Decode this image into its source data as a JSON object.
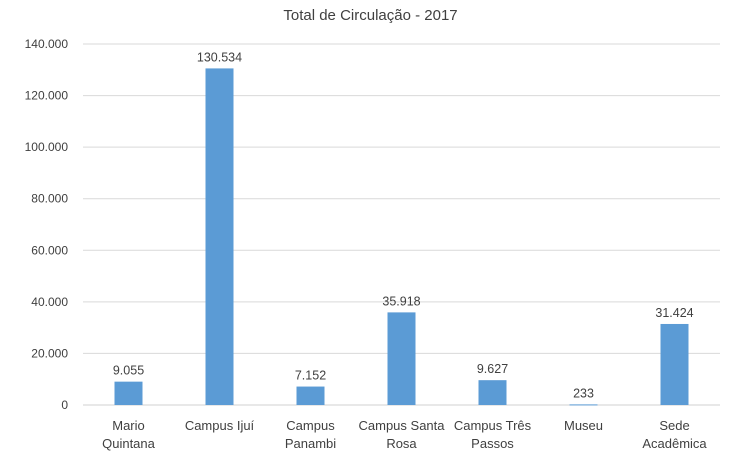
{
  "chart_data": {
    "type": "bar",
    "title": "Total de Circulação - 2017",
    "categories": [
      "Mario Quintana",
      "Campus Ijuí",
      "Campus Panambi",
      "Campus Santa Rosa",
      "Campus Três Passos",
      "Museu",
      "Sede Acadêmica"
    ],
    "values": [
      9055,
      130534,
      7152,
      35918,
      9627,
      233,
      31424
    ],
    "data_labels": [
      "9.055",
      "130.534",
      "7.152",
      "35.918",
      "9.627",
      "233",
      "31.424"
    ],
    "ylim": [
      0,
      140000
    ],
    "yticks": [
      0,
      20000,
      40000,
      60000,
      80000,
      100000,
      120000,
      140000
    ],
    "ytick_labels": [
      "0",
      "20.000",
      "40.000",
      "60.000",
      "80.000",
      "100.000",
      "120.000",
      "140.000"
    ],
    "grid": true,
    "legend": "none",
    "bar_color": "#5B9BD5",
    "xlabel": "",
    "ylabel": ""
  }
}
